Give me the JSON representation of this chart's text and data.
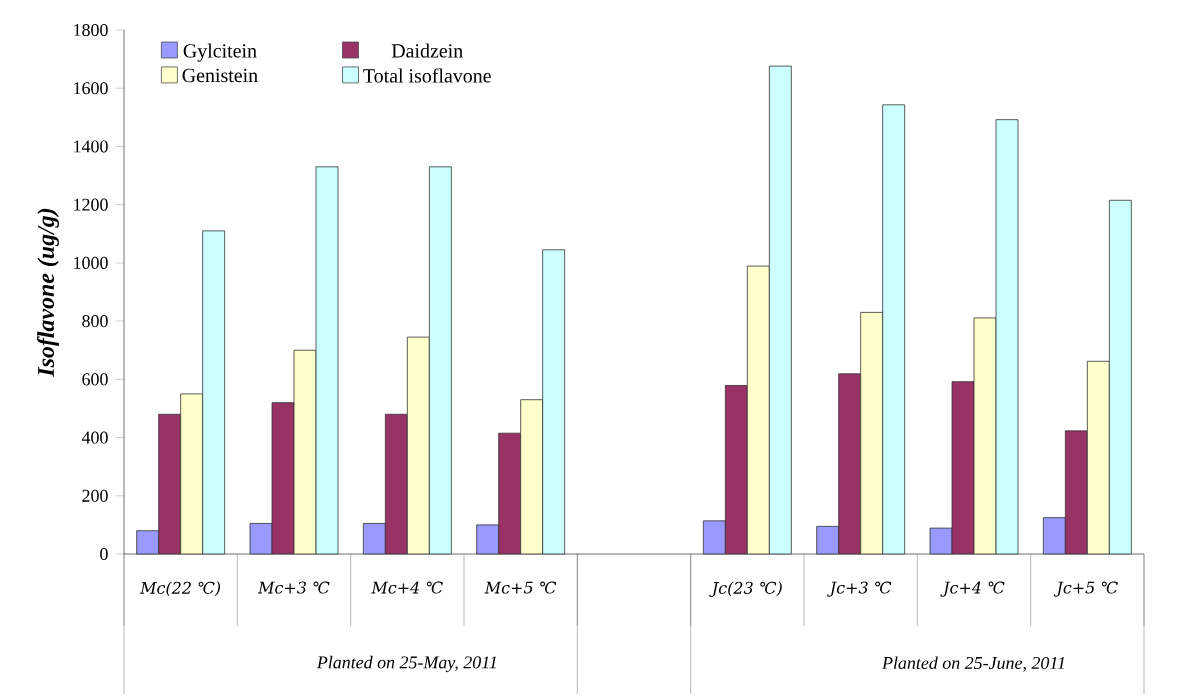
{
  "chart_data": {
    "type": "bar",
    "ylabel": "Isoflavone (ug/g)",
    "categories": [
      "Mc(22 ℃)",
      "Mc+3 ℃",
      "Mc+4 ℃",
      "Mc+5 ℃",
      null,
      "Jc(23 ℃)",
      "Jc+3 ℃",
      "Jc+4 ℃",
      "Jc+5 ℃"
    ],
    "series": [
      {
        "name": "Gylcitein",
        "color": "#9999ff",
        "values": [
          80,
          105,
          105,
          100,
          null,
          114,
          95,
          89,
          125
        ]
      },
      {
        "name": "Daidzein",
        "color": "#993366",
        "values": [
          480,
          520,
          480,
          415,
          null,
          579,
          619,
          592,
          423
        ]
      },
      {
        "name": "Genistein",
        "color": "#ffffcc",
        "values": [
          550,
          700,
          745,
          530,
          null,
          989,
          830,
          811,
          662
        ]
      },
      {
        "name": "Total isoflavone",
        "color": "#ccffff",
        "values": [
          1110,
          1330,
          1330,
          1045,
          null,
          1676,
          1543,
          1492,
          1215
        ]
      }
    ],
    "ylim": [
      0,
      1800
    ],
    "yticks": [
      0,
      200,
      400,
      600,
      800,
      1000,
      1200,
      1400,
      1600,
      1800
    ],
    "legend": "top left",
    "grid": false,
    "annotations": [
      "Planted on 25-May, 2011",
      "Planted on 25-June, 2011"
    ]
  }
}
